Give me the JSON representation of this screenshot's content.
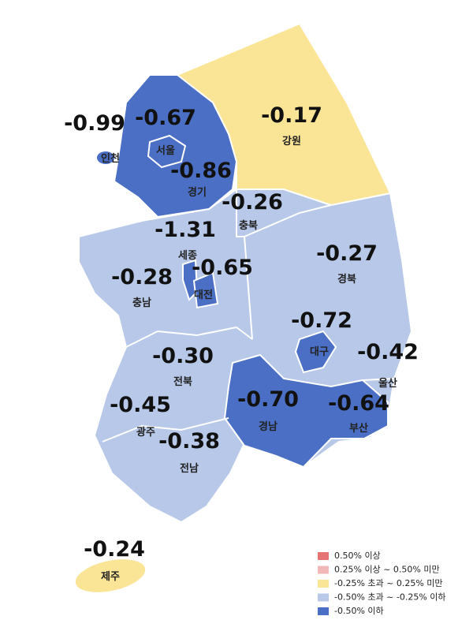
{
  "regions": [
    {
      "name": "인천",
      "value": "-0.99"
    },
    {
      "name": "서울",
      "value": "-0.67"
    },
    {
      "name": "경기",
      "value": "-0.86"
    },
    {
      "name": "강원",
      "value": "-0.17"
    },
    {
      "name": "충북",
      "value": "-0.26"
    },
    {
      "name": "세종",
      "value": "-1.31"
    },
    {
      "name": "대전",
      "value": "-0.65"
    },
    {
      "name": "충남",
      "value": "-0.28"
    },
    {
      "name": "경북",
      "value": "-0.27"
    },
    {
      "name": "대구",
      "value": "-0.72"
    },
    {
      "name": "울산",
      "value": "-0.42"
    },
    {
      "name": "전북",
      "value": "-0.30"
    },
    {
      "name": "경남",
      "value": "-0.70"
    },
    {
      "name": "부산",
      "value": "-0.64"
    },
    {
      "name": "광주",
      "value": "-0.45"
    },
    {
      "name": "전남",
      "value": "-0.38"
    },
    {
      "name": "제주",
      "value": "-0.24"
    }
  ],
  "legend": [
    {
      "label": "0.50% 이상",
      "color": "#e57373"
    },
    {
      "label": "0.25% 이상 ~ 0.50% 미만",
      "color": "#f2b8b8"
    },
    {
      "label": "-0.25% 초과 ~ 0.25% 미만",
      "color": "#fae596"
    },
    {
      "label": "-0.50% 초과 ~ -0.25% 이하",
      "color": "#b7c8e8"
    },
    {
      "label": "-0.50% 이하",
      "color": "#4a6fc4"
    }
  ]
}
